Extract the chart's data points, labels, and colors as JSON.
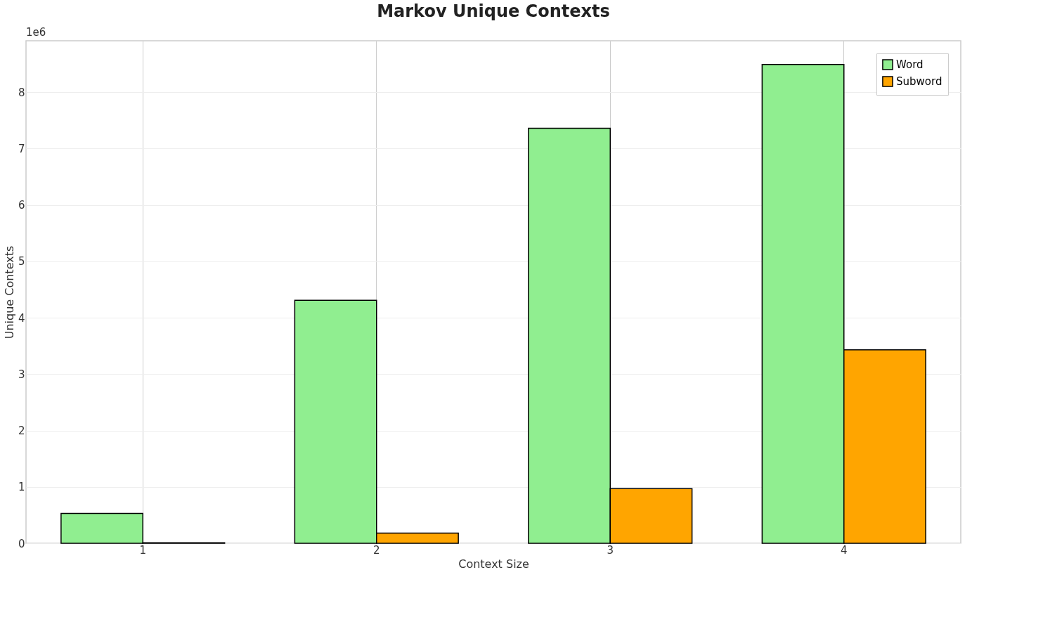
{
  "chart_data": {
    "type": "bar",
    "title": "Markov Unique Contexts",
    "xlabel": "Context Size",
    "ylabel": "Unique Contexts",
    "annotations": [
      "1e6"
    ],
    "categories": [
      "1",
      "2",
      "3",
      "4"
    ],
    "series": [
      {
        "name": "Word",
        "color": "#90ee90",
        "values": [
          0.53,
          4.31,
          7.36,
          8.49
        ]
      },
      {
        "name": "Subword",
        "color": "#ffa500",
        "values": [
          0.01,
          0.18,
          0.97,
          3.43
        ]
      }
    ],
    "ylim": [
      0,
      8.91
    ],
    "yticks": [
      0,
      1,
      2,
      3,
      4,
      5,
      6,
      7,
      8
    ],
    "grid": true,
    "legend": "top right"
  }
}
